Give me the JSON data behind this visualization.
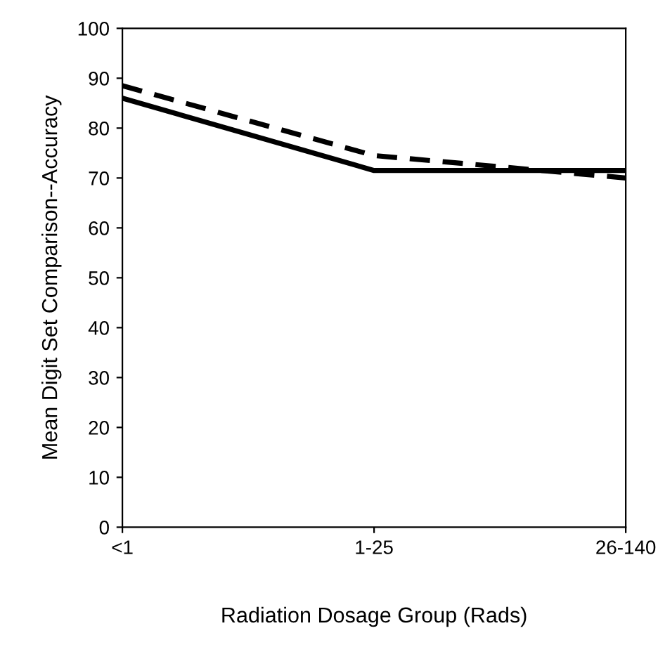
{
  "chart_data": {
    "type": "line",
    "xlabel": "Radiation Dosage Group (Rads)",
    "ylabel": "Mean Digit Set Comparison--Accuracy",
    "categories": [
      "<1",
      "1-25",
      "26-140"
    ],
    "series": [
      {
        "color": "#000000",
        "values": [
          86,
          71.5,
          71.5
        ],
        "line_style": "solid"
      },
      {
        "color": "#000000",
        "values": [
          88.5,
          74.5,
          70
        ],
        "line_style": "dashed"
      }
    ],
    "ylim": [
      0,
      100
    ],
    "yticks": [
      0,
      10,
      20,
      30,
      40,
      50,
      60,
      70,
      80,
      90,
      100
    ],
    "grid": false,
    "legend": false,
    "marker": "none"
  }
}
